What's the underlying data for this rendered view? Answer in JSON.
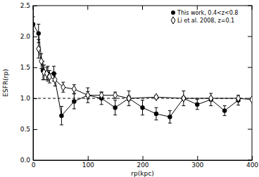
{
  "chart_data": {
    "type": "line",
    "x_label": "rp(kpc)",
    "y_label": "ESFR(rp)",
    "xlim": [
      0,
      400
    ],
    "xticks": [
      0,
      100,
      200,
      300,
      400
    ],
    "ylim": [
      0,
      2.5
    ],
    "yticks": [
      {
        "value": 0,
        "label": "0.0"
      },
      0.5,
      {
        "value": 1,
        "label": "1.0"
      },
      1.5,
      {
        "value": 2,
        "label": "2.0"
      },
      2.5
    ],
    "reference_y": 1,
    "legend": "upper right",
    "series": [
      {
        "name": "This work, 0.4<z<0.8",
        "color": "#000000",
        "marker": "circle",
        "line_style": "solid",
        "x": [
          0,
          10,
          18,
          27,
          38,
          52,
          75,
          100,
          125,
          150,
          175,
          200,
          225,
          250,
          275,
          300,
          325,
          350,
          375
        ],
        "values": [
          2.2,
          2.05,
          1.45,
          1.4,
          1.4,
          0.72,
          0.95,
          1.05,
          1.0,
          0.85,
          1.0,
          0.85,
          0.75,
          0.7,
          1.0,
          0.9,
          0.98,
          0.8,
          0.97
        ],
        "errors": [
          0.12,
          0.15,
          0.15,
          0.12,
          0.12,
          0.15,
          0.12,
          0.12,
          0.1,
          0.12,
          0.12,
          0.12,
          0.1,
          0.1,
          0.12,
          0.08,
          0.1,
          0.08,
          0.08
        ]
      },
      {
        "name": "Li et al. 2008, z=0.1",
        "color": "#000000",
        "marker": "diamond-open",
        "line_style": "solid",
        "x": [
          10,
          15,
          20,
          25,
          30,
          40,
          55,
          75,
          100,
          125,
          150,
          175,
          225,
          275,
          325,
          375,
          400
        ],
        "values": [
          1.8,
          1.6,
          1.42,
          1.4,
          1.35,
          1.3,
          1.18,
          1.15,
          1.05,
          1.05,
          1.05,
          1.0,
          1.02,
          1.0,
          1.0,
          1.0,
          0.98
        ],
        "errors": [
          0.15,
          0.12,
          0.12,
          0.1,
          0.1,
          0.1,
          0.08,
          0.07,
          0.06,
          0.05,
          0.05,
          0.04,
          0.03,
          0.03,
          0.02,
          0.02,
          0.02
        ]
      }
    ]
  }
}
